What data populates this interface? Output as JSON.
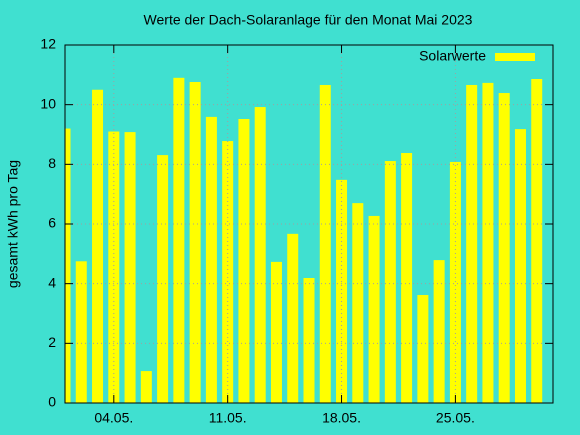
{
  "chart_data": {
    "type": "bar",
    "title": "Werte der Dach-Solaranlage für den Monat Mai 2023",
    "y_label": "gesamt kWh pro Tag",
    "categories": [
      null,
      null,
      null,
      "04.05.",
      null,
      null,
      null,
      null,
      null,
      null,
      "11.05.",
      null,
      null,
      null,
      null,
      null,
      null,
      "18.05.",
      null,
      null,
      null,
      null,
      null,
      null,
      "25.05.",
      null,
      null,
      null,
      null,
      null,
      null
    ],
    "series": [
      {
        "name": "Solarwerte",
        "color": "#ffff00",
        "values": [
          9.2,
          4.75,
          10.5,
          9.1,
          9.08,
          1.07,
          8.31,
          10.9,
          10.76,
          9.59,
          8.78,
          9.52,
          9.92,
          4.73,
          5.67,
          4.19,
          10.66,
          7.48,
          6.7,
          6.27,
          8.11,
          8.38,
          3.62,
          4.79,
          8.08,
          10.66,
          10.73,
          10.39,
          9.18,
          10.86,
          null
        ]
      }
    ],
    "ylim": [
      0,
      12
    ],
    "yticks": [
      0,
      2,
      4,
      6,
      8,
      10,
      12
    ],
    "grid": true,
    "legend": "top-right"
  }
}
